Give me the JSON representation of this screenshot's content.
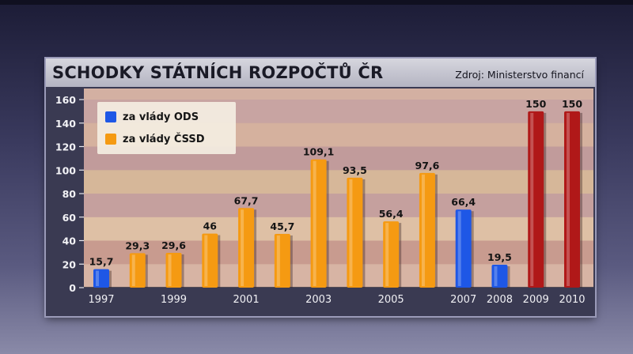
{
  "chart_data": {
    "type": "bar",
    "title": "SCHODKY STÁTNÍCH ROZPOČTŮ ČR",
    "source": "Zdroj: Ministerstvo financí",
    "categories": [
      "1997",
      "1998",
      "1999",
      "2000",
      "2001",
      "2002",
      "2003",
      "2004",
      "2005",
      "2006",
      "2007",
      "2008",
      "2009",
      "2010"
    ],
    "x_tick_labels": [
      "1997",
      "",
      "1999",
      "",
      "2001",
      "",
      "2003",
      "",
      "2005",
      "",
      "2007",
      "2008",
      "2009",
      "2010"
    ],
    "values": [
      15.7,
      29.3,
      29.6,
      46,
      67.7,
      45.7,
      109.1,
      93.5,
      56.4,
      97.6,
      66.4,
      19.5,
      150,
      150
    ],
    "value_labels": [
      "15,7",
      "29,3",
      "29,6",
      "46",
      "67,7",
      "45,7",
      "109,1",
      "93,5",
      "56,4",
      "97,6",
      "66,4",
      "19,5",
      "150",
      "150"
    ],
    "bar_colors": [
      "#1e57e6",
      "#f59a12",
      "#f59a12",
      "#f59a12",
      "#f59a12",
      "#f59a12",
      "#f59a12",
      "#f59a12",
      "#f59a12",
      "#f59a12",
      "#1e57e6",
      "#1e57e6",
      "#b01818",
      "#b01818"
    ],
    "ylim": [
      0,
      160
    ],
    "y_ticks": [
      0,
      20,
      40,
      60,
      80,
      100,
      120,
      140,
      160
    ],
    "xlabel": "",
    "ylabel": "",
    "grid": false,
    "legend": {
      "placement": "top-left",
      "items": [
        {
          "label": "za vlády ODS",
          "color": "#1e57e6"
        },
        {
          "label": "za vlády ČSSD",
          "color": "#f59a12"
        }
      ]
    }
  }
}
